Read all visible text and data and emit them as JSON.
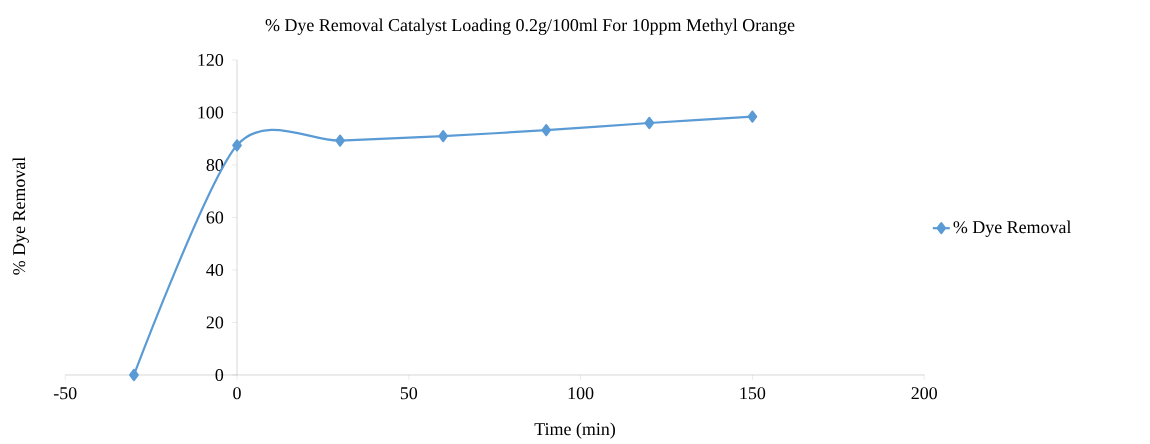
{
  "chart_data": {
    "type": "line",
    "title": "% Dye Removal  Catalyst Loading 0.2g/100ml For 10ppm Methyl Orange",
    "xlabel": "Time (min)",
    "ylabel": "% Dye Removal",
    "x": [
      -30,
      0,
      30,
      60,
      90,
      120,
      150
    ],
    "series": [
      {
        "name": "% Dye Removal",
        "color": "#5b9bd5",
        "values": [
          0,
          87.5,
          89.3,
          91,
          93.3,
          96,
          98.4
        ]
      }
    ],
    "xlim": [
      -50,
      200
    ],
    "xticks": [
      -50,
      0,
      50,
      100,
      150,
      200
    ],
    "ylim": [
      0,
      120
    ],
    "yticks": [
      0,
      20,
      40,
      60,
      80,
      100,
      120
    ],
    "grid": false,
    "legend": "right",
    "marker": "diamond",
    "line_style": "solid"
  }
}
